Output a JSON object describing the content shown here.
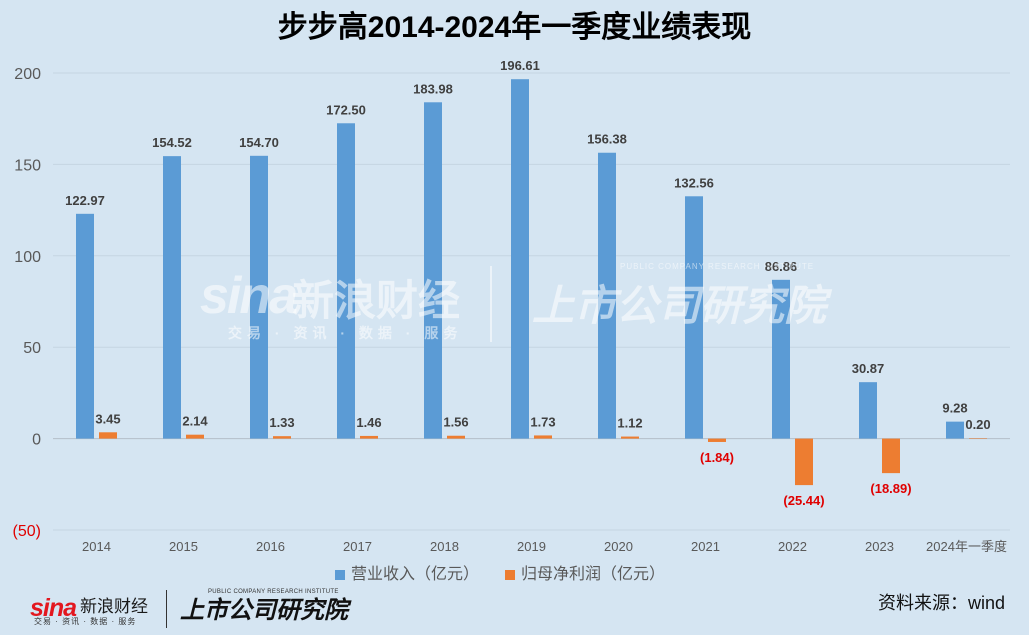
{
  "chart_data": {
    "type": "bar",
    "title": "步步高2014-2024年一季度业绩表现",
    "categories": [
      "2014",
      "2015",
      "2016",
      "2017",
      "2018",
      "2019",
      "2020",
      "2021",
      "2022",
      "2023",
      "2024年一季度"
    ],
    "series": [
      {
        "name": "营业收入（亿元）",
        "color": "#5b9bd5",
        "values": [
          122.97,
          154.52,
          154.7,
          172.5,
          183.98,
          196.61,
          156.38,
          132.56,
          86.86,
          30.87,
          9.28
        ],
        "data_labels": [
          "122.97",
          "154.52",
          "154.70",
          "172.50",
          "183.98",
          "196.61",
          "156.38",
          "132.56",
          "86.86",
          "30.87",
          "9.28"
        ]
      },
      {
        "name": "归母净利润（亿元）",
        "color": "#ed7d31",
        "values": [
          3.45,
          2.14,
          1.33,
          1.46,
          1.56,
          1.73,
          1.12,
          -1.84,
          -25.44,
          -18.89,
          0.2
        ],
        "data_labels": [
          "3.45",
          "2.14",
          "1.33",
          "1.46",
          "1.56",
          "1.73",
          "1.12",
          "(1.84)",
          "(25.44)",
          "(18.89)",
          "0.20"
        ]
      }
    ],
    "ylim": [
      -50,
      200
    ],
    "yticks": [
      -50,
      0,
      50,
      100,
      150,
      200
    ],
    "ytick_labels": [
      "(50)",
      "0",
      "50",
      "100",
      "150",
      "200"
    ],
    "grid": "horizontal",
    "legend": "bottom",
    "negative_label_color": "#e00000"
  },
  "source": "资料来源：wind",
  "branding": {
    "sina_logo": "sina",
    "sina_name": "新浪财经",
    "sina_tagline": "交易 · 资讯 · 数据 · 服务",
    "institute_en": "PUBLIC COMPANY RESEARCH INSTITUTE",
    "institute": "上市公司研究院"
  },
  "colors": {
    "background": "#d5e5f2",
    "label_text": "#404040",
    "axis_text": "#595959"
  }
}
